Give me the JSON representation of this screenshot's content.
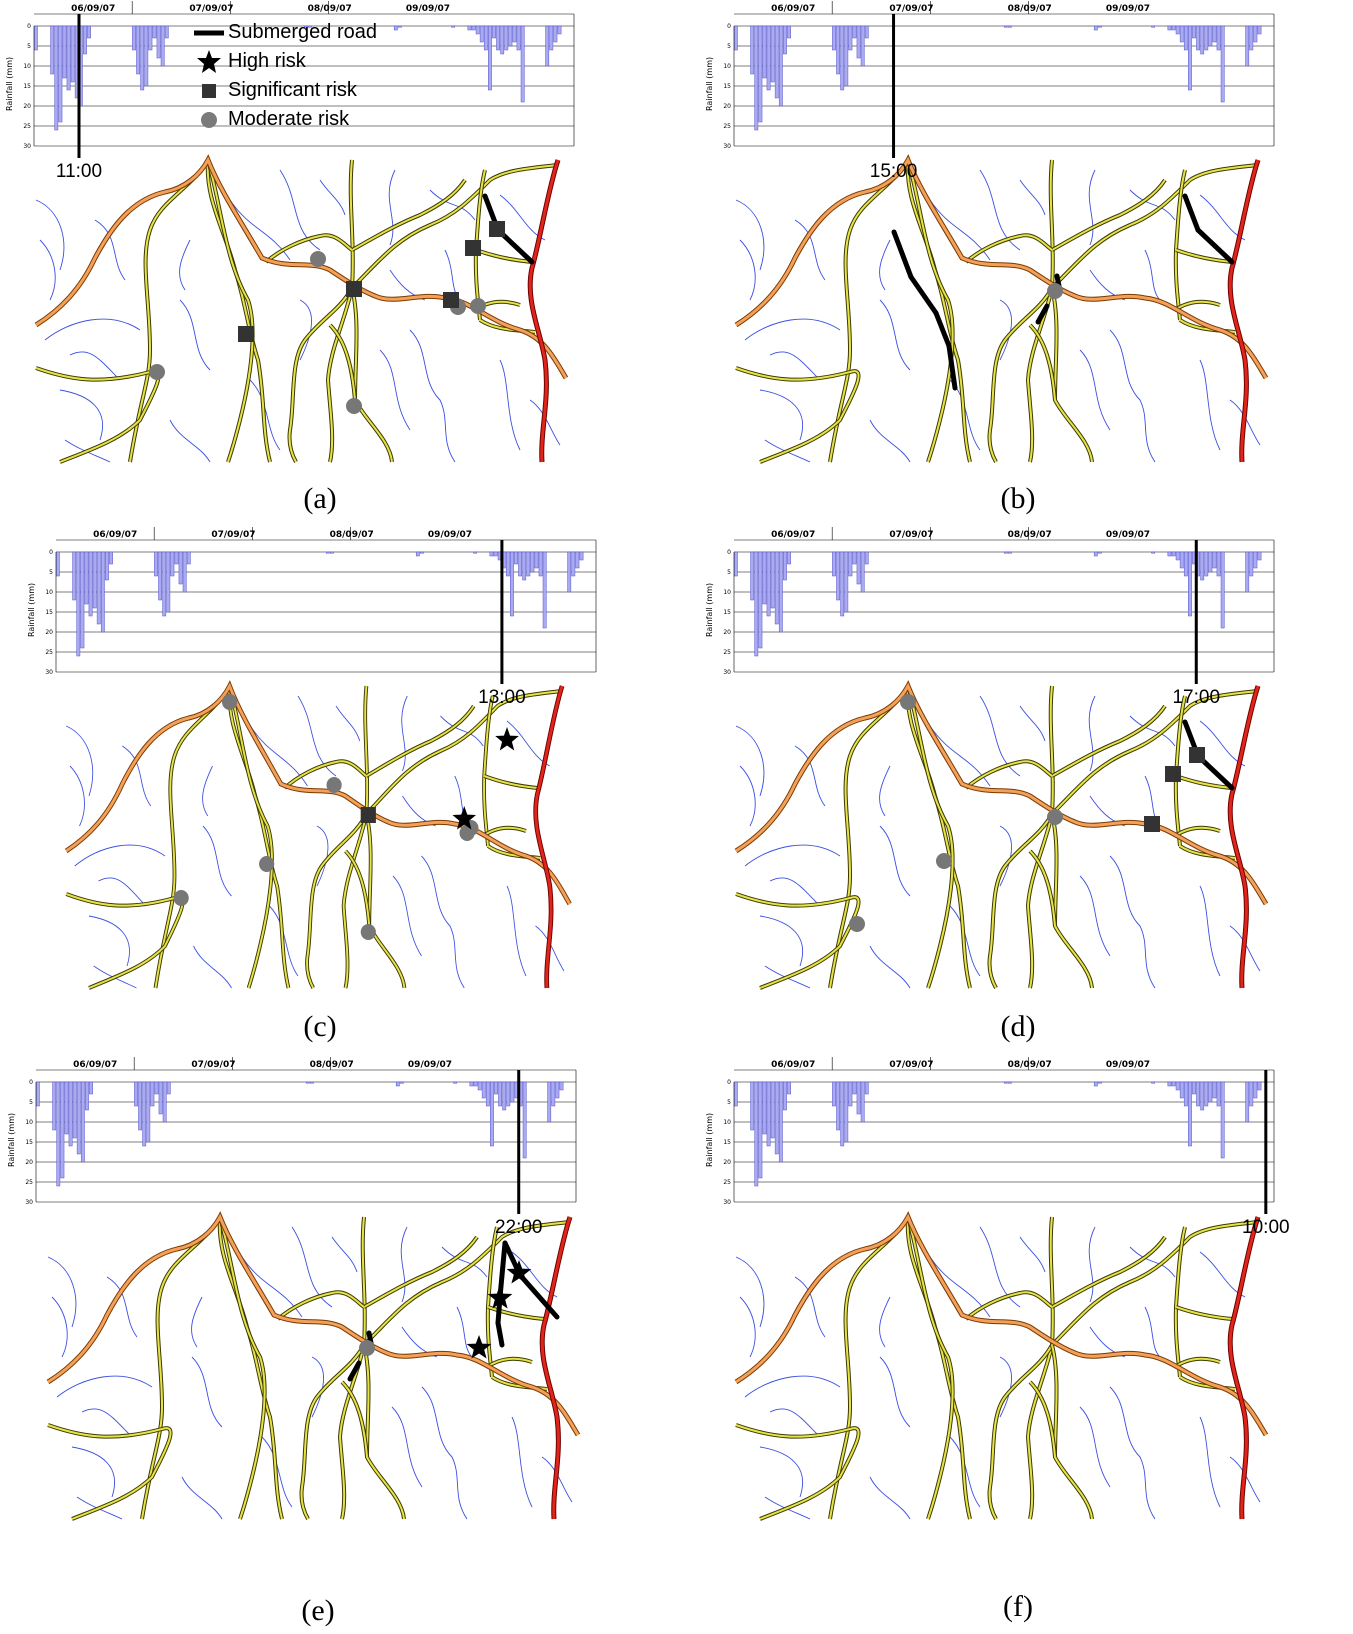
{
  "legend": {
    "items": [
      {
        "symbol": "line",
        "label": "Submerged road"
      },
      {
        "symbol": "star",
        "label": "High risk"
      },
      {
        "symbol": "square",
        "label": "Significant risk"
      },
      {
        "symbol": "circle",
        "label": "Moderate risk"
      }
    ]
  },
  "chart_common": {
    "type": "bar",
    "ylabel": "Rainfall (mm)",
    "ylim": [
      0,
      30
    ],
    "yticks": [
      "0",
      "5",
      "10",
      "15",
      "20",
      "25",
      "30"
    ],
    "y_inverted": true,
    "dates": [
      "06/09/07",
      "07/09/07",
      "08/09/07",
      "09/09/07"
    ],
    "bar_color": "#aaaaf2"
  },
  "rainfall_mm": [
    6,
    0,
    0,
    0,
    12,
    26,
    24,
    13,
    16,
    14,
    18,
    20,
    7,
    3,
    0,
    0,
    0,
    0,
    0,
    0,
    0,
    0,
    0,
    0,
    6,
    12,
    16,
    15,
    6,
    3,
    8,
    10,
    3,
    0,
    0,
    0,
    0,
    0,
    0,
    0,
    0,
    0,
    0,
    0,
    0,
    0,
    0,
    0,
    0,
    0,
    0,
    0,
    0,
    0,
    0,
    0,
    0,
    0,
    0,
    0,
    0,
    0,
    0,
    0,
    0,
    0,
    0.3,
    0.3,
    0,
    0,
    0,
    0,
    0,
    0,
    0,
    0,
    0,
    0,
    0,
    0,
    0,
    0,
    0,
    0,
    0,
    0,
    0,
    0,
    1,
    0.3,
    0,
    0,
    0,
    0,
    0,
    0,
    0,
    0,
    0,
    0,
    0,
    0,
    0.3,
    0,
    0,
    0,
    1,
    1,
    2,
    4,
    6,
    16,
    3,
    6,
    7,
    6,
    5,
    4,
    6,
    19,
    0,
    0,
    0,
    0,
    0,
    10,
    6,
    4,
    2,
    0,
    0,
    0
  ],
  "panels": [
    {
      "id": "a",
      "caption": "(a)",
      "time": "11:00",
      "marker_hour": 11,
      "submerged": [
        [
          "R1",
          "R2"
        ],
        [
          "R2",
          "R3"
        ]
      ],
      "stars": [],
      "squares": [
        "J2",
        "J3",
        "J6",
        "J7",
        "J8"
      ],
      "circles": [
        "J1",
        "J4",
        "J5",
        "J9",
        "J10"
      ]
    },
    {
      "id": "b",
      "caption": "(b)",
      "time": "15:00",
      "marker_hour": 39,
      "submerged": [
        [
          "N1",
          "N2"
        ],
        [
          "N2",
          "N3"
        ],
        [
          "N3",
          "N4"
        ],
        [
          "N4",
          "N5"
        ],
        [
          "M1",
          "M2"
        ],
        [
          "M3",
          "M4"
        ],
        [
          "R1",
          "R2"
        ],
        [
          "R2",
          "R3"
        ]
      ],
      "stars": [],
      "squares": [],
      "circles": [
        "J11"
      ]
    },
    {
      "id": "c",
      "caption": "(c)",
      "time": "13:00",
      "marker_hour": 109,
      "submerged": [],
      "stars": [
        "J12",
        "J13"
      ],
      "squares": [
        "J6"
      ],
      "circles": [
        "J14",
        "J1",
        "J15",
        "J4",
        "J5",
        "J16",
        "J9"
      ]
    },
    {
      "id": "d",
      "caption": "(d)",
      "time": "17:00",
      "marker_hour": 113,
      "submerged": [
        [
          "R1",
          "R2"
        ],
        [
          "R2",
          "R3"
        ]
      ],
      "stars": [],
      "squares": [
        "J2",
        "J3",
        "J17"
      ],
      "circles": [
        "J14",
        "J11",
        "J18",
        "J19"
      ]
    },
    {
      "id": "e",
      "caption": "(e)",
      "time": "22:00",
      "marker_hour": 118,
      "submerged": [
        [
          "E1",
          "E2"
        ],
        [
          "E2",
          "E3"
        ],
        [
          "E3",
          "E4"
        ],
        [
          "E1",
          "E5"
        ],
        [
          "E5",
          "E6"
        ],
        [
          "M1",
          "M2"
        ],
        [
          "M3",
          "M4"
        ]
      ],
      "stars": [
        "J20",
        "J21",
        "J22"
      ],
      "squares": [],
      "circles": [
        "J11"
      ]
    },
    {
      "id": "f",
      "caption": "(f)",
      "time": "10:00",
      "marker_hour": 130,
      "submerged": [],
      "stars": [],
      "squares": [],
      "circles": []
    }
  ]
}
